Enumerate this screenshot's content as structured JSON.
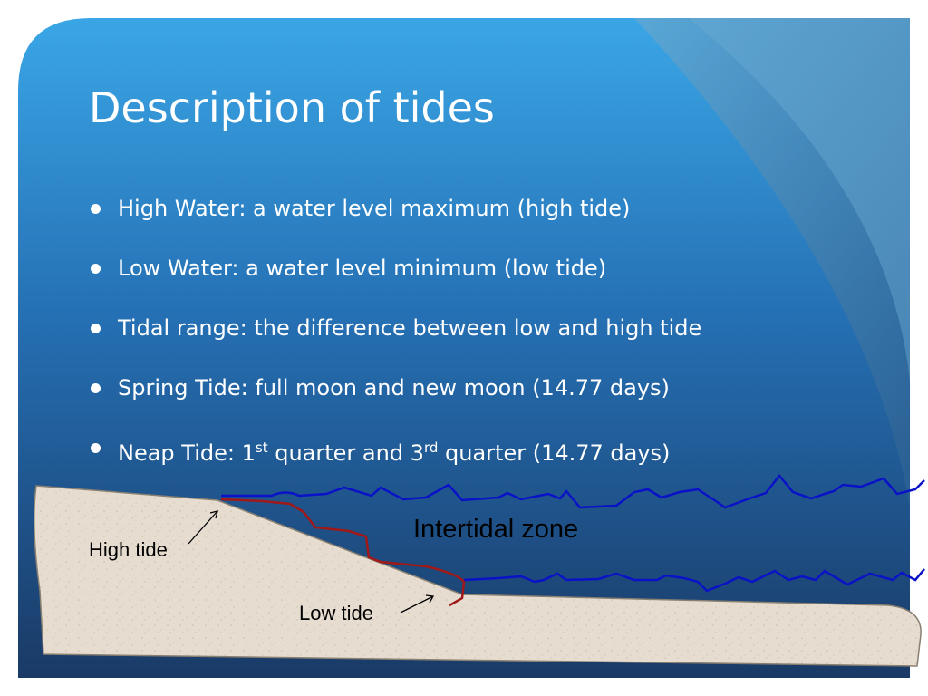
{
  "slide": {
    "title": "Description of tides",
    "bullets": [
      {
        "text": "High Water: a water level maximum (high tide)"
      },
      {
        "text": "Low Water: a water level minimum (low tide)"
      },
      {
        "text": "Tidal range: the difference between low and high tide"
      },
      {
        "text": "Spring Tide: full moon and new moon (14.77 days)"
      },
      {
        "before": "Neap Tide: 1",
        "sup1": "st",
        "middle": " quarter and 3",
        "sup2": "rd",
        "after": " quarter (14.77 days)"
      }
    ]
  },
  "diagram": {
    "intertidal_label": "Intertidal zone",
    "high_tide_label": "High tide",
    "low_tide_label": "Low tide"
  },
  "colors": {
    "background_top": "#3aa6e6",
    "background_bottom": "#1a3a66",
    "water_line": "#0a12c8",
    "zone_line": "#a01818",
    "sand": "#e6ddd0"
  }
}
